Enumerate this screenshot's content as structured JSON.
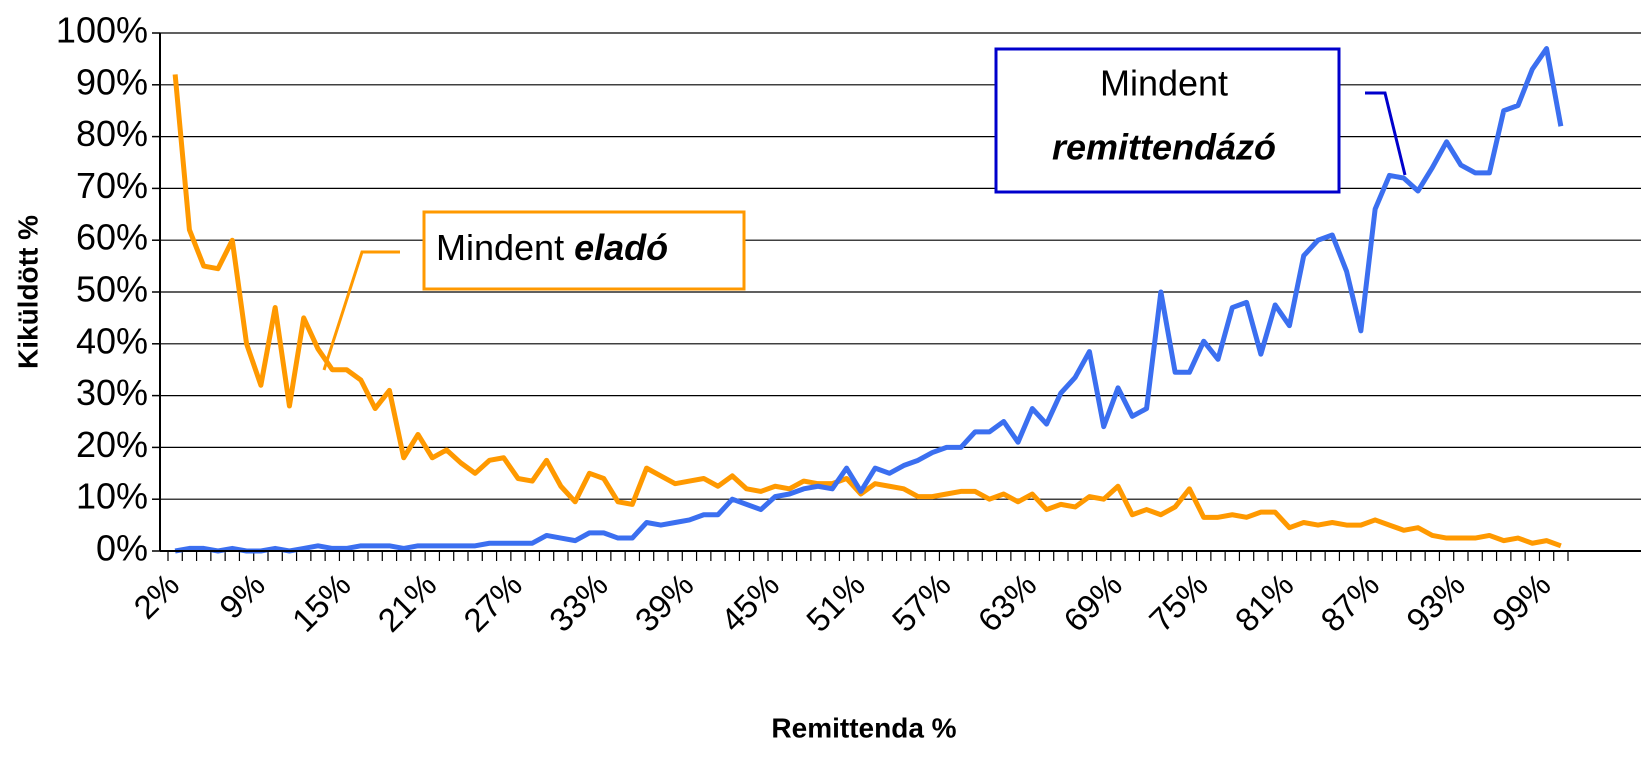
{
  "chart_data": {
    "type": "line",
    "x_label": "Remittenda %",
    "y_label": "Kiküldött %",
    "categories": [
      "2%",
      null,
      null,
      null,
      null,
      null,
      "9%",
      null,
      null,
      null,
      null,
      null,
      "15%",
      null,
      null,
      null,
      null,
      null,
      "21%",
      null,
      null,
      null,
      null,
      null,
      "27%",
      null,
      null,
      null,
      null,
      null,
      "33%",
      null,
      null,
      null,
      null,
      null,
      "39%",
      null,
      null,
      null,
      null,
      null,
      "45%",
      null,
      null,
      null,
      null,
      null,
      "51%",
      null,
      null,
      null,
      null,
      null,
      "57%",
      null,
      null,
      null,
      null,
      null,
      "63%",
      null,
      null,
      null,
      null,
      null,
      "69%",
      null,
      null,
      null,
      null,
      null,
      "75%",
      null,
      null,
      null,
      null,
      null,
      "81%",
      null,
      null,
      null,
      null,
      null,
      "87%",
      null,
      null,
      null,
      null,
      null,
      "93%",
      null,
      null,
      null,
      null,
      null,
      "99%",
      null
    ],
    "series": [
      {
        "name": "Mindent eladó",
        "color": "#ff9900",
        "values": [
          92,
          62,
          55,
          54.5,
          60,
          40,
          32,
          47,
          28,
          45,
          39,
          35,
          35,
          33,
          27.5,
          31,
          18,
          22.5,
          18,
          19.5,
          17,
          15,
          17.5,
          18,
          14,
          13.5,
          17.5,
          12.5,
          9.5,
          15,
          14,
          9.5,
          9,
          16,
          14.5,
          13,
          13.5,
          14,
          12.5,
          14.5,
          12,
          11.5,
          12.5,
          12,
          13.5,
          13,
          13,
          14,
          11,
          13,
          12.5,
          12,
          10.5,
          10.5,
          11,
          11.5,
          11.5,
          10,
          11,
          9.5,
          11,
          8,
          9,
          8.5,
          10.5,
          10,
          12.5,
          7,
          8,
          7,
          8.5,
          12,
          6.5,
          6.5,
          7,
          6.5,
          7.5,
          7.5,
          4.5,
          5.5,
          5,
          5.5,
          5,
          5,
          6,
          5,
          4,
          4.5,
          3,
          2.5,
          2.5,
          2.5,
          3,
          2,
          2.5,
          1.5,
          2,
          1
        ]
      },
      {
        "name": "Mindent remittendázó",
        "color": "#3b6ff0",
        "values": [
          0,
          0.5,
          0.5,
          0,
          0.5,
          0,
          0,
          0.5,
          0,
          0.5,
          1,
          0.5,
          0.5,
          1,
          1,
          1,
          0.5,
          1,
          1,
          1,
          1,
          1,
          1.5,
          1.5,
          1.5,
          1.5,
          3,
          2.5,
          2,
          3.5,
          3.5,
          2.5,
          2.5,
          5.5,
          5,
          5.5,
          6,
          7,
          7,
          10,
          9,
          8,
          10.5,
          11,
          12,
          12.5,
          12,
          16,
          11.5,
          16,
          15,
          16.5,
          17.5,
          19,
          20,
          20,
          23,
          23,
          25,
          21,
          27.5,
          24.5,
          30.5,
          33.5,
          38.5,
          24,
          31.5,
          26,
          27.5,
          50,
          34.5,
          34.5,
          40.5,
          37,
          47,
          48,
          38,
          47.5,
          43.5,
          57,
          60,
          61,
          54,
          42.5,
          66,
          72.5,
          72,
          69.5,
          74,
          79,
          74.5,
          73,
          73,
          85,
          86,
          93,
          97,
          82
        ]
      }
    ],
    "annotations": [
      {
        "text": "Mindent",
        "emphasis": "eladó"
      },
      {
        "text": "Mindent",
        "emphasis": "remittendázó"
      }
    ],
    "ylim": [
      0,
      100
    ],
    "yticks": [
      {
        "value": 0,
        "label": "0%"
      },
      {
        "value": 10,
        "label": "10%"
      },
      {
        "value": 20,
        "label": "20%"
      },
      {
        "value": 30,
        "label": "30%"
      },
      {
        "value": 40,
        "label": "40%"
      },
      {
        "value": 50,
        "label": "50%"
      },
      {
        "value": 60,
        "label": "60%"
      },
      {
        "value": 70,
        "label": "70%"
      },
      {
        "value": 80,
        "label": "80%"
      },
      {
        "value": 90,
        "label": "90%"
      },
      {
        "value": 100,
        "label": "100%"
      }
    ],
    "grid": true
  }
}
